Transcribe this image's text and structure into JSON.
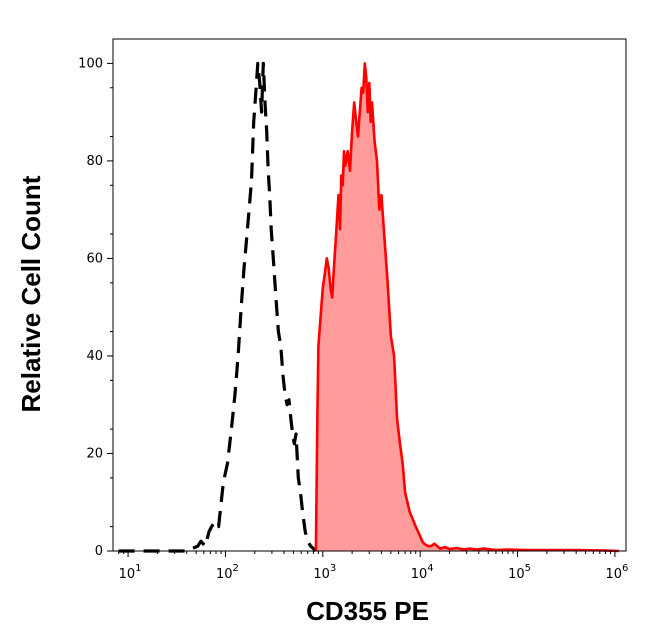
{
  "chart_data": {
    "type": "area",
    "title": "",
    "xlabel": "CD355 PE",
    "ylabel": "Relative Cell Count",
    "x_scale": "log",
    "xlim": [
      7,
      1300000
    ],
    "ylim": [
      0,
      105
    ],
    "x_ticks": [
      {
        "base": "10",
        "exp": "1",
        "value": 10
      },
      {
        "base": "10",
        "exp": "2",
        "value": 100
      },
      {
        "base": "10",
        "exp": "3",
        "value": 1000
      },
      {
        "base": "10",
        "exp": "4",
        "value": 10000
      },
      {
        "base": "10",
        "exp": "5",
        "value": 100000
      },
      {
        "base": "10",
        "exp": "6",
        "value": 1000000
      }
    ],
    "y_ticks": [
      {
        "label": "0",
        "value": 0
      },
      {
        "label": "20",
        "value": 20
      },
      {
        "label": "40",
        "value": 40
      },
      {
        "label": "60",
        "value": 60
      },
      {
        "label": "80",
        "value": 80
      },
      {
        "label": "100",
        "value": 100
      }
    ],
    "grid": false,
    "series": [
      {
        "style": "dashed",
        "color": "#000000",
        "fill": "none",
        "x": [
          8,
          40,
          52,
          56,
          62,
          68,
          72,
          78,
          85,
          95,
          105,
          115,
          125,
          135,
          145,
          155,
          165,
          175,
          185,
          195,
          205,
          215,
          225,
          235,
          245,
          255,
          265,
          275,
          285,
          295,
          310,
          330,
          350,
          370,
          390,
          410,
          430,
          450,
          470,
          490,
          510,
          530,
          560,
          590,
          620,
          660,
          700,
          750,
          800,
          850
        ],
        "y": [
          0,
          0,
          1,
          2,
          1,
          4,
          5,
          6,
          5,
          14,
          18,
          25,
          32,
          40,
          50,
          58,
          64,
          70,
          76,
          88,
          94,
          100,
          96,
          90,
          100,
          92,
          86,
          78,
          73,
          66,
          60,
          52,
          45,
          42,
          36,
          32,
          30,
          31,
          27,
          24,
          22,
          24,
          15,
          12,
          8,
          4,
          2,
          1,
          0.5,
          0
        ]
      },
      {
        "style": "solid",
        "color": "#ff0000",
        "fill": "#ff9b9b",
        "x": [
          850,
          880,
          900,
          950,
          1000,
          1050,
          1100,
          1150,
          1200,
          1250,
          1300,
          1350,
          1400,
          1450,
          1500,
          1550,
          1600,
          1650,
          1700,
          1800,
          1900,
          2000,
          2100,
          2200,
          2300,
          2400,
          2500,
          2600,
          2700,
          2800,
          2900,
          3000,
          3100,
          3200,
          3400,
          3600,
          3800,
          4000,
          4300,
          4600,
          5000,
          5400,
          5800,
          6200,
          6600,
          7000,
          7400,
          7800,
          8200,
          8600,
          9000,
          9500,
          10000,
          10500,
          11000,
          12000,
          13000,
          14000,
          15000,
          16000,
          18000,
          20000,
          24000,
          28000,
          32000,
          38000,
          45000,
          60000,
          80000,
          120000,
          200000,
          400000,
          800000,
          1100000
        ],
        "y": [
          0,
          28,
          42,
          48,
          54,
          57,
          60,
          58,
          54,
          52,
          58,
          63,
          68,
          73,
          66,
          77,
          75,
          82,
          79,
          82,
          78,
          86,
          92,
          88,
          85,
          90,
          95,
          94,
          100,
          97,
          90,
          96,
          88,
          92,
          84,
          80,
          70,
          73,
          64,
          56,
          44,
          40,
          27,
          22,
          18,
          12,
          10,
          8,
          7,
          6,
          5,
          4,
          3,
          2,
          1.5,
          1,
          1,
          1.5,
          1,
          0.5,
          0.8,
          0.4,
          0.6,
          0.3,
          0.5,
          0.3,
          0.5,
          0.2,
          0.3,
          0.2,
          0.2,
          0.2,
          0.1,
          0
        ]
      }
    ]
  }
}
